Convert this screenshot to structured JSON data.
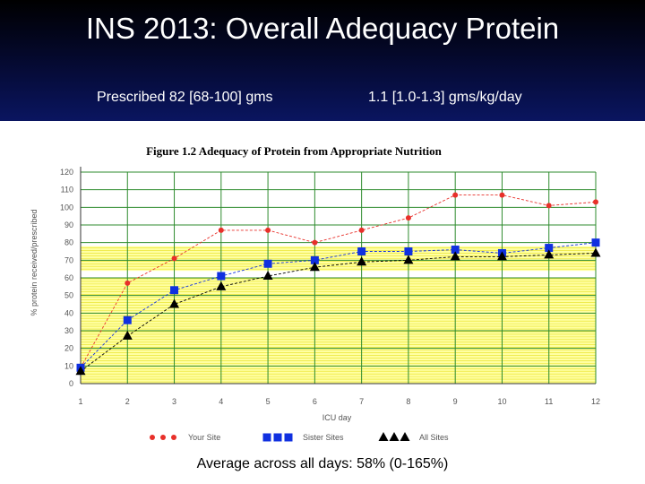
{
  "slide": {
    "title": "INS 2013: Overall Adequacy Protein",
    "prescribed": "Prescribed  82 [68-100]  gms",
    "per_kg": "1.1 [1.0-1.3] gms/kg/day",
    "average": "Average across all days: 58% (0-165%)"
  },
  "colors": {
    "your_site": "#e8302a",
    "sister_sites": "#1030e0",
    "all_sites": "#000000",
    "band": "#ffff55",
    "grid": "#2e8b2e"
  },
  "chart_data": {
    "type": "line",
    "title": "Figure 1.2 Adequacy of Protein from Appropriate Nutrition",
    "xlabel": "ICU day",
    "ylabel": "% protein received/prescribed",
    "x": [
      1,
      2,
      3,
      4,
      5,
      6,
      7,
      8,
      9,
      10,
      11,
      12
    ],
    "ylim": [
      0,
      120
    ],
    "yticks": [
      0,
      10,
      20,
      30,
      40,
      50,
      60,
      70,
      80,
      90,
      100,
      110,
      120
    ],
    "grid": true,
    "legend_position": "bottom",
    "bands": [
      [
        64,
        78
      ],
      [
        0,
        60
      ]
    ],
    "series": [
      {
        "name": "Your Site",
        "marker": "circle",
        "values": [
          9,
          57,
          71,
          87,
          87,
          80,
          87,
          94,
          107,
          107,
          101,
          103
        ]
      },
      {
        "name": "Sister Sites",
        "marker": "square",
        "values": [
          9,
          36,
          53,
          61,
          68,
          70,
          75,
          75,
          76,
          74,
          77,
          80
        ]
      },
      {
        "name": "All Sites",
        "marker": "triangle",
        "values": [
          7,
          27,
          45,
          55,
          61,
          66,
          69,
          70,
          72,
          72,
          73,
          74
        ]
      }
    ]
  }
}
